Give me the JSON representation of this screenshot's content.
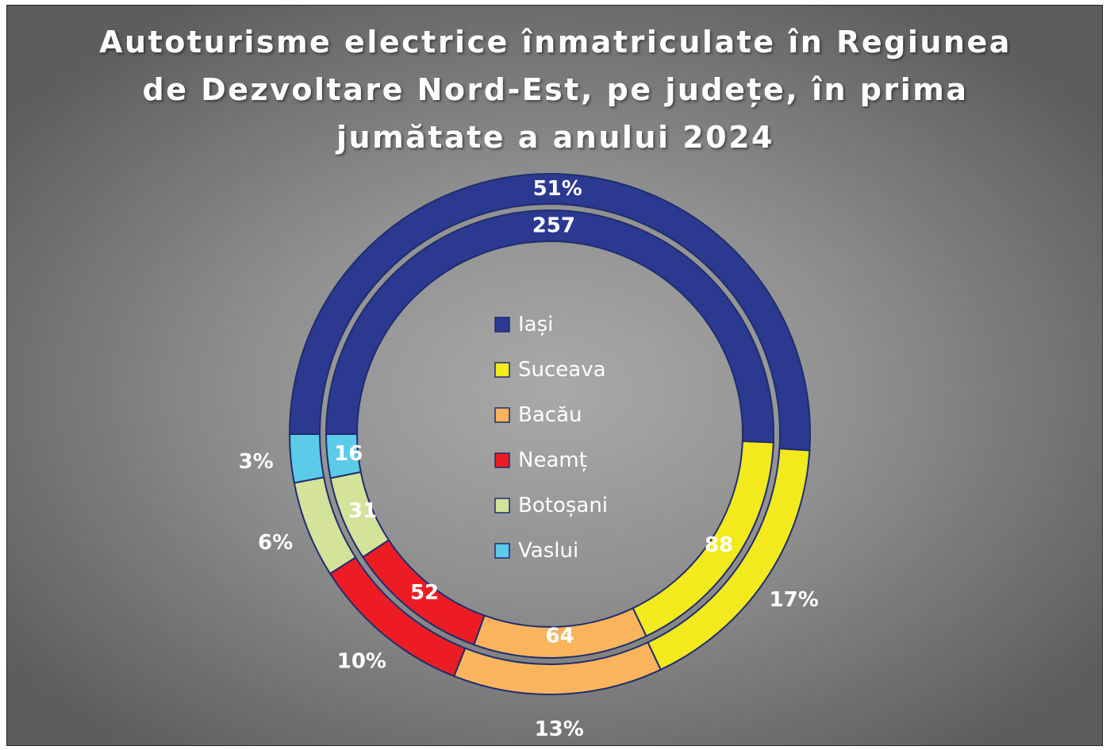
{
  "chart_data": {
    "type": "donut",
    "title": "Autoturisme electrice înmatriculate în Regiunea de Dezvoltare Nord-Est, pe județe, în prima jumătate a anului 2024",
    "categories": [
      "Iași",
      "Suceava",
      "Bacău",
      "Neamț",
      "Botoșani",
      "Vaslui"
    ],
    "colors": [
      "#2b3990",
      "#f2ea1c",
      "#fbb45e",
      "#ed1c24",
      "#d4e29a",
      "#5bcbe8"
    ],
    "series": [
      {
        "values": [
          257,
          88,
          64,
          52,
          31,
          16
        ]
      },
      {
        "values": [
          51,
          17,
          13,
          10,
          6,
          3
        ]
      }
    ],
    "value_labels": [
      "257",
      "88",
      "64",
      "52",
      "31",
      "16"
    ],
    "percent_labels": [
      "51%",
      "17%",
      "13%",
      "10%",
      "6%",
      "3%"
    ],
    "legend_position": "center"
  }
}
